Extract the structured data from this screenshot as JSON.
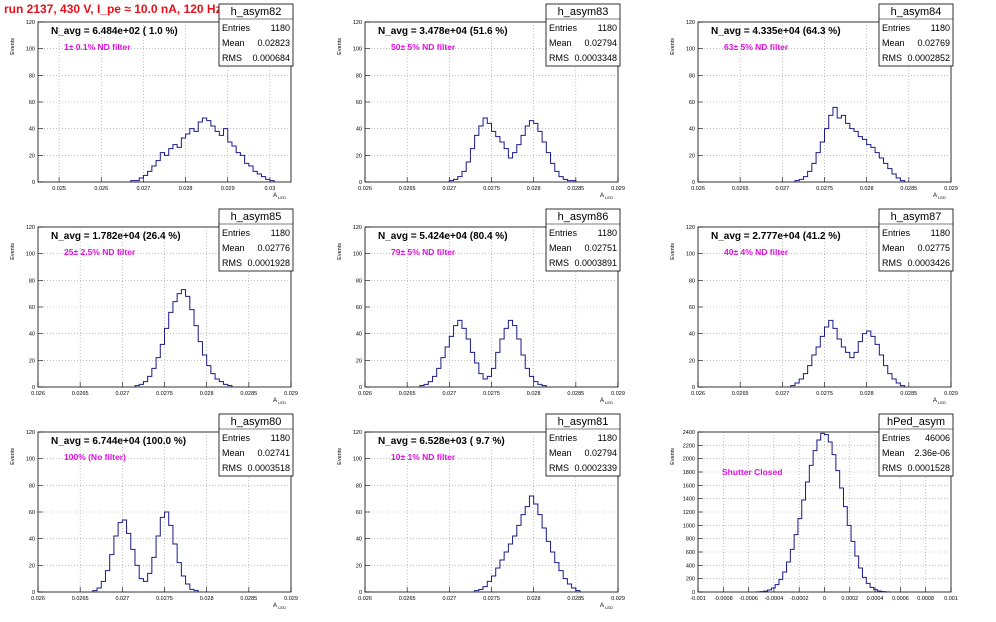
{
  "run_title": "run 2137,   430 V, I_pe ≈ 10.0 nA, 120 Hz",
  "colors": {
    "title": "#e8101a",
    "annotation": "#e010e0",
    "hist": "#1a1a8c",
    "grid": "#999999"
  },
  "chart_data": [
    {
      "type": "histogram",
      "name": "h_asym82",
      "navg": "N_avg = 6.484e+02 ( 1.0 %)",
      "note": "1± 0.1% ND filter",
      "entries": "1180",
      "mean": "0.02823",
      "rms": "0.000684",
      "ylabel": "Events",
      "xlabel": "A_{LED}",
      "xlim": [
        0.0245,
        0.0305
      ],
      "ylim": [
        0,
        120
      ],
      "yticks": [
        0,
        20,
        40,
        60,
        80,
        100,
        120
      ],
      "xticks": [
        0.025,
        0.026,
        0.027,
        0.028,
        0.029,
        0.03
      ],
      "xticklabels": [
        "0.025",
        "0.026",
        "0.027",
        "0.028",
        "0.029",
        "0.03"
      ],
      "counts": [
        1,
        1,
        3,
        5,
        8,
        12,
        16,
        22,
        20,
        25,
        28,
        26,
        33,
        36,
        40,
        38,
        45,
        48,
        46,
        42,
        38,
        35,
        40,
        30,
        27,
        22,
        20,
        14,
        12,
        8,
        6,
        4,
        2,
        1
      ],
      "bin_start": 0.0267,
      "bin_width": 0.0001
    },
    {
      "type": "histogram",
      "name": "h_asym83",
      "navg": "N_avg = 3.478e+04 (51.6 %)",
      "note": "50± 5% ND filter",
      "entries": "1180",
      "mean": "0.02794",
      "rms": "0.0003348",
      "ylabel": "Events",
      "xlabel": "A_{LED}",
      "xlim": [
        0.026,
        0.029
      ],
      "ylim": [
        0,
        120
      ],
      "yticks": [
        0,
        20,
        40,
        60,
        80,
        100,
        120
      ],
      "xticks": [
        0.026,
        0.0265,
        0.027,
        0.0275,
        0.028,
        0.0285,
        0.029
      ],
      "xticklabels": [
        "0.026",
        "0.0265",
        "0.027",
        "0.0275",
        "0.028",
        "0.0285",
        "0.029"
      ],
      "counts": [
        1,
        2,
        4,
        8,
        15,
        25,
        35,
        42,
        48,
        44,
        38,
        34,
        30,
        25,
        18,
        22,
        28,
        35,
        42,
        46,
        44,
        38,
        30,
        22,
        14,
        8,
        4,
        2,
        1,
        1
      ],
      "bin_start": 0.027,
      "bin_width": 5e-05
    },
    {
      "type": "histogram",
      "name": "h_asym84",
      "navg": "N_avg = 4.335e+04 (64.3 %)",
      "note": "63± 5% ND filter",
      "entries": "1180",
      "mean": "0.02769",
      "rms": "0.0002852",
      "ylabel": "Events",
      "xlabel": "A_{LED}",
      "xlim": [
        0.026,
        0.029
      ],
      "ylim": [
        0,
        120
      ],
      "yticks": [
        0,
        20,
        40,
        60,
        80,
        100,
        120
      ],
      "xticks": [
        0.026,
        0.0265,
        0.027,
        0.0275,
        0.028,
        0.0285,
        0.029
      ],
      "xticklabels": [
        "0.026",
        "0.0265",
        "0.027",
        "0.0275",
        "0.028",
        "0.0285",
        "0.029"
      ],
      "counts": [
        1,
        2,
        4,
        8,
        14,
        22,
        30,
        40,
        50,
        56,
        48,
        50,
        44,
        40,
        38,
        34,
        32,
        28,
        26,
        22,
        18,
        14,
        10,
        6,
        3,
        1
      ],
      "bin_start": 0.02715,
      "bin_width": 5e-05
    },
    {
      "type": "histogram",
      "name": "h_asym85",
      "navg": "N_avg = 1.782e+04 (26.4 %)",
      "note": "25± 2.5% ND filter",
      "entries": "1180",
      "mean": "0.02776",
      "rms": "0.0001928",
      "ylabel": "Events",
      "xlabel": "A_{LED}",
      "xlim": [
        0.026,
        0.029
      ],
      "ylim": [
        0,
        120
      ],
      "yticks": [
        0,
        20,
        40,
        60,
        80,
        100,
        120
      ],
      "xticks": [
        0.026,
        0.0265,
        0.027,
        0.0275,
        0.028,
        0.0285,
        0.029
      ],
      "xticklabels": [
        "0.026",
        "0.0265",
        "0.027",
        "0.0275",
        "0.028",
        "0.0285",
        "0.029"
      ],
      "counts": [
        1,
        2,
        4,
        8,
        14,
        22,
        32,
        44,
        56,
        64,
        70,
        73,
        68,
        58,
        46,
        34,
        24,
        16,
        10,
        6,
        4,
        2,
        1
      ],
      "bin_start": 0.02715,
      "bin_width": 5e-05
    },
    {
      "type": "histogram",
      "name": "h_asym86",
      "navg": "N_avg = 5.424e+04 (80.4 %)",
      "note": "79± 5% ND filter",
      "entries": "1180",
      "mean": "0.02751",
      "rms": "0.0003891",
      "ylabel": "Events",
      "xlabel": "A_{LED}",
      "xlim": [
        0.026,
        0.029
      ],
      "ylim": [
        0,
        120
      ],
      "yticks": [
        0,
        20,
        40,
        60,
        80,
        100,
        120
      ],
      "xticks": [
        0.026,
        0.0265,
        0.027,
        0.0275,
        0.028,
        0.0285,
        0.029
      ],
      "xticklabels": [
        "0.026",
        "0.0265",
        "0.027",
        "0.0275",
        "0.028",
        "0.0285",
        "0.029"
      ],
      "counts": [
        1,
        2,
        4,
        8,
        14,
        22,
        30,
        38,
        46,
        50,
        44,
        36,
        26,
        18,
        10,
        6,
        8,
        14,
        26,
        36,
        44,
        50,
        46,
        36,
        24,
        14,
        8,
        4,
        2,
        1
      ],
      "bin_start": 0.02665,
      "bin_width": 5e-05
    },
    {
      "type": "histogram",
      "name": "h_asym87",
      "navg": "N_avg = 2.777e+04 (41.2 %)",
      "note": "40± 4% ND filter",
      "entries": "1180",
      "mean": "0.02775",
      "rms": "0.0003426",
      "ylabel": "Events",
      "xlabel": "A_{LED}",
      "xlim": [
        0.026,
        0.029
      ],
      "ylim": [
        0,
        120
      ],
      "yticks": [
        0,
        20,
        40,
        60,
        80,
        100,
        120
      ],
      "xticks": [
        0.026,
        0.0265,
        0.027,
        0.0275,
        0.028,
        0.0285,
        0.029
      ],
      "xticklabels": [
        "0.026",
        "0.0265",
        "0.027",
        "0.0275",
        "0.028",
        "0.0285",
        "0.029"
      ],
      "counts": [
        1,
        3,
        6,
        10,
        16,
        24,
        30,
        38,
        45,
        50,
        44,
        36,
        30,
        26,
        22,
        26,
        34,
        40,
        42,
        38,
        32,
        24,
        16,
        10,
        6,
        3,
        1
      ],
      "bin_start": 0.0271,
      "bin_width": 5e-05
    },
    {
      "type": "histogram",
      "name": "h_asym80",
      "navg": "N_avg = 6.744e+04 (100.0 %)",
      "note": "100% (No filter)",
      "entries": "1180",
      "mean": "0.02741",
      "rms": "0.0003518",
      "ylabel": "Events",
      "xlabel": "A_{LED}",
      "xlim": [
        0.026,
        0.029
      ],
      "ylim": [
        0,
        120
      ],
      "yticks": [
        0,
        20,
        40,
        60,
        80,
        100,
        120
      ],
      "xticks": [
        0.026,
        0.0265,
        0.027,
        0.0275,
        0.028,
        0.0285,
        0.029
      ],
      "xticklabels": [
        "0.026",
        "0.0265",
        "0.027",
        "0.0275",
        "0.028",
        "0.0285",
        "0.029"
      ],
      "counts": [
        1,
        3,
        8,
        16,
        28,
        42,
        52,
        54,
        44,
        32,
        20,
        10,
        8,
        14,
        26,
        42,
        56,
        60,
        50,
        36,
        22,
        12,
        6,
        2,
        1
      ],
      "bin_start": 0.02665,
      "bin_width": 5e-05
    },
    {
      "type": "histogram",
      "name": "h_asym81",
      "navg": "N_avg = 6.528e+03 ( 9.7 %)",
      "note": "10± 1% ND filter",
      "entries": "1180",
      "mean": "0.02794",
      "rms": "0.0002339",
      "ylabel": "Events",
      "xlabel": "A_{LED}",
      "xlim": [
        0.026,
        0.029
      ],
      "ylim": [
        0,
        120
      ],
      "yticks": [
        0,
        20,
        40,
        60,
        80,
        100,
        120
      ],
      "xticks": [
        0.026,
        0.0265,
        0.027,
        0.0275,
        0.028,
        0.0285,
        0.029
      ],
      "xticklabels": [
        "0.026",
        "0.0265",
        "0.027",
        "0.0275",
        "0.028",
        "0.0285",
        "0.029"
      ],
      "counts": [
        1,
        2,
        4,
        8,
        12,
        18,
        24,
        30,
        36,
        42,
        50,
        58,
        64,
        72,
        66,
        58,
        48,
        38,
        30,
        22,
        16,
        10,
        6,
        3,
        1
      ],
      "bin_start": 0.0273,
      "bin_width": 5e-05
    },
    {
      "type": "histogram",
      "name": "hPed_asym",
      "navg": "",
      "note": "Shutter Closed",
      "entries": "46006",
      "mean": "2.36e-06",
      "rms": "0.0001528",
      "ylabel": "Events",
      "xlabel": "",
      "xlim": [
        -0.001,
        0.001
      ],
      "ylim": [
        0,
        2400
      ],
      "yticks": [
        0,
        200,
        400,
        600,
        800,
        1000,
        1200,
        1400,
        1600,
        1800,
        2000,
        2200,
        2400
      ],
      "xticks": [
        -0.001,
        -0.0008,
        -0.0006,
        -0.0004,
        -0.0002,
        0,
        0.0002,
        0.0004,
        0.0006,
        0.0008,
        0.001
      ],
      "xticklabels": [
        "-0.001",
        "-0.0008",
        "-0.0006",
        "-0.0004",
        "-0.0002",
        "0",
        "0.0002",
        "0.0004",
        "0.0006",
        "0.0008",
        "0.001"
      ],
      "counts": [
        2,
        6,
        14,
        30,
        60,
        110,
        190,
        300,
        450,
        640,
        860,
        1100,
        1380,
        1650,
        1900,
        2120,
        2280,
        2380,
        2360,
        2250,
        2060,
        1820,
        1560,
        1280,
        1000,
        760,
        540,
        360,
        220,
        130,
        70,
        34,
        14,
        6,
        2
      ],
      "bin_start": -0.00054,
      "bin_width": 3e-05
    }
  ]
}
